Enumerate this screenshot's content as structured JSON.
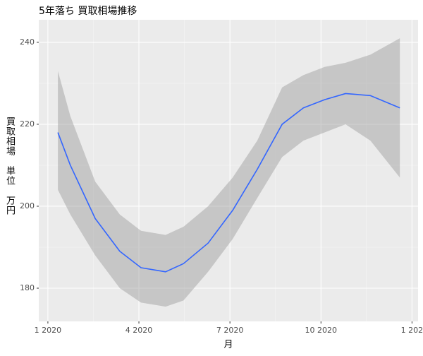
{
  "chart_data": {
    "type": "smooth",
    "title": "5年落ち 買取相場推移",
    "x_label": "月",
    "y_label": "買取相場　単位　万円",
    "x": [
      1.33,
      1.74,
      2.56,
      3.37,
      4.07,
      4.88,
      5.47,
      6.28,
      7.09,
      7.9,
      8.72,
      9.42,
      10.12,
      10.81,
      11.63,
      12.6
    ],
    "values": [
      218,
      210,
      197,
      189,
      185,
      184,
      186,
      191,
      199,
      209,
      220,
      224,
      226,
      227.5,
      227,
      224
    ],
    "lower": [
      204,
      198,
      188,
      180,
      176.5,
      175.5,
      177,
      184,
      192,
      202,
      212,
      216,
      218,
      220,
      216,
      207
    ],
    "upper": [
      233,
      222,
      206,
      198,
      194,
      193,
      195,
      200,
      207,
      216,
      229,
      232,
      234,
      235,
      237,
      241
    ],
    "color": "#3366ff",
    "band_color": "#999999",
    "xlim": [
      0.7,
      13.2
    ],
    "xticks": [
      {
        "value": 1,
        "label": "1 2020"
      },
      {
        "value": 4,
        "label": "4 2020"
      },
      {
        "value": 7,
        "label": "7 2020"
      },
      {
        "value": 10,
        "label": "10 2020"
      },
      {
        "value": 13,
        "label": "1 202"
      }
    ],
    "ylim": [
      171.9,
      245.5
    ],
    "yticks": [
      180,
      200,
      220,
      240
    ],
    "grid": true
  }
}
